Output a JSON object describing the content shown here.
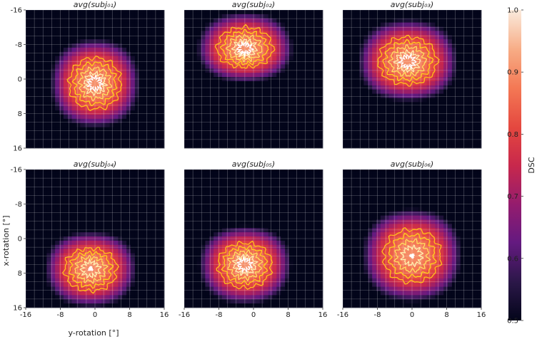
{
  "chart_data": {
    "type": "heatmap",
    "title": "",
    "xlabel": "y-rotation [°]",
    "ylabel": "x-rotation [°]",
    "x_ticks": [
      "-16",
      "-8",
      "0",
      "8",
      "16"
    ],
    "y_ticks": [
      "-16",
      "-8",
      "0",
      "8",
      "16"
    ],
    "xlim": [
      -16,
      16
    ],
    "ylim": [
      -16,
      16
    ],
    "y_axis_inverted": true,
    "grid_step": 2,
    "colorbar": {
      "label": "DSC",
      "range": [
        0.5,
        1.0
      ],
      "ticks": [
        "0.5",
        "0.6",
        "0.7",
        "0.8",
        "0.9",
        "1.0"
      ]
    },
    "contours": {
      "levels": [
        0.8,
        0.84,
        0.87,
        0.89,
        0.9
      ],
      "colors": [
        "#ffbf1a",
        "#ffd21c",
        "#ffe060",
        "#fff0b0",
        "#ffffff"
      ]
    },
    "panels": [
      {
        "title": "avg(subj₀₁)",
        "peak": 0.905,
        "center_x": 0,
        "center_y": 1,
        "falloff_x": 0.00065,
        "falloff_y": 0.00065,
        "asym_down": 0.0
      },
      {
        "title": "avg(subj₀₂)",
        "peak": 0.905,
        "center_x": -2,
        "center_y": -7,
        "falloff_x": 0.00055,
        "falloff_y": 0.00095,
        "asym_down": 0.4
      },
      {
        "title": "avg(subj₀₃)",
        "peak": 0.905,
        "center_x": -1,
        "center_y": -4,
        "falloff_x": 0.0005,
        "falloff_y": 0.0007,
        "asym_down": 0.25
      },
      {
        "title": "avg(subj₀₄)",
        "peak": 0.9,
        "center_x": -1,
        "center_y": 7,
        "falloff_x": 0.0006,
        "falloff_y": 0.00085,
        "asym_down": -0.2
      },
      {
        "title": "avg(subj₀₅)",
        "peak": 0.905,
        "center_x": -2,
        "center_y": 6,
        "falloff_x": 0.0006,
        "falloff_y": 0.0008,
        "asym_down": -0.2
      },
      {
        "title": "avg(subj₀₆)",
        "peak": 0.9,
        "center_x": 0,
        "center_y": 4,
        "falloff_x": 0.0005,
        "falloff_y": 0.00058,
        "asym_down": 0.0
      }
    ]
  }
}
